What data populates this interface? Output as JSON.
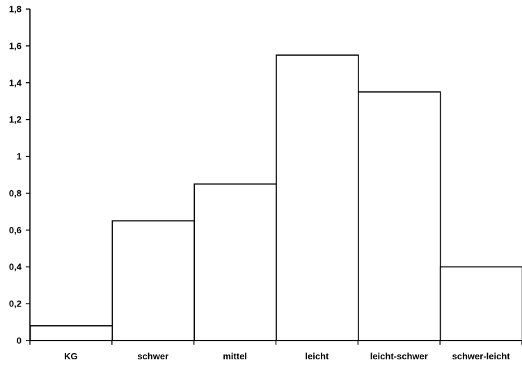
{
  "chart_data": {
    "type": "bar",
    "categories": [
      "KG",
      "schwer",
      "mittel",
      "leicht",
      "leicht-schwer",
      "schwer-leicht"
    ],
    "values": [
      0.08,
      0.65,
      0.85,
      1.55,
      1.35,
      0.4
    ],
    "title": "",
    "xlabel": "",
    "ylabel": "",
    "ylim": [
      0,
      1.8
    ],
    "y_ticks": [
      "0",
      "0,2",
      "0,4",
      "0,6",
      "0,8",
      "1",
      "1,2",
      "1,4",
      "1,6",
      "1,8"
    ],
    "grid": false,
    "legend": "none",
    "bar_fill": "#ffffff",
    "bar_stroke": "#000000"
  }
}
